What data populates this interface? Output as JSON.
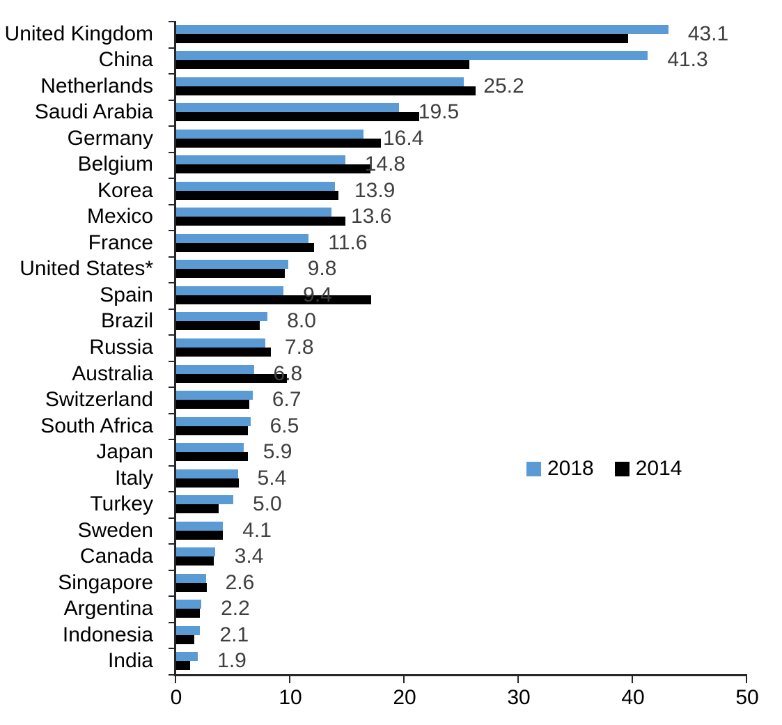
{
  "chart_data": {
    "type": "bar",
    "orientation": "horizontal",
    "title": "",
    "xlabel": "",
    "ylabel": "",
    "xlim": [
      0,
      50
    ],
    "x_ticks": [
      0,
      10,
      20,
      30,
      40,
      50
    ],
    "grid": false,
    "legend_position": "middle-right",
    "categories": [
      "United Kingdom",
      "China",
      "Netherlands",
      "Saudi Arabia",
      "Germany",
      "Belgium",
      "Korea",
      "Mexico",
      "France",
      "United States*",
      "Spain",
      "Brazil",
      "Russia",
      "Australia",
      "Switzerland",
      "South Africa",
      "Japan",
      "Italy",
      "Turkey",
      "Sweden",
      "Canada",
      "Singapore",
      "Argentina",
      "Indonesia",
      "India"
    ],
    "series": [
      {
        "name": "2018",
        "color": "#5B9BD5",
        "values": [
          43.1,
          41.3,
          25.2,
          19.5,
          16.4,
          14.8,
          13.9,
          13.6,
          11.6,
          9.8,
          9.4,
          8.0,
          7.8,
          6.8,
          6.7,
          6.5,
          5.9,
          5.4,
          5.0,
          4.1,
          3.4,
          2.6,
          2.2,
          2.1,
          1.9
        ]
      },
      {
        "name": "2014",
        "color": "#000000",
        "values": [
          39.6,
          25.7,
          26.2,
          21.3,
          17.9,
          17.0,
          14.2,
          14.8,
          12.1,
          9.5,
          17.1,
          7.3,
          8.3,
          9.7,
          6.4,
          6.3,
          6.3,
          5.5,
          3.7,
          4.1,
          3.3,
          2.7,
          2.1,
          1.6,
          1.2
        ]
      }
    ],
    "data_labels": {
      "series": "2018",
      "color": "#3F3F3F",
      "values": [
        "43.1",
        "41.3",
        "25.2",
        "19.5",
        "16.4",
        "14.8",
        "13.9",
        "13.6",
        "11.6",
        "9.8",
        "9.4",
        "8.0",
        "7.8",
        "6.8",
        "6.7",
        "6.5",
        "5.9",
        "5.4",
        "5.0",
        "4.1",
        "3.4",
        "2.6",
        "2.2",
        "2.1",
        "1.9"
      ]
    },
    "axis_color": "#262626",
    "text_color": "#000000"
  }
}
